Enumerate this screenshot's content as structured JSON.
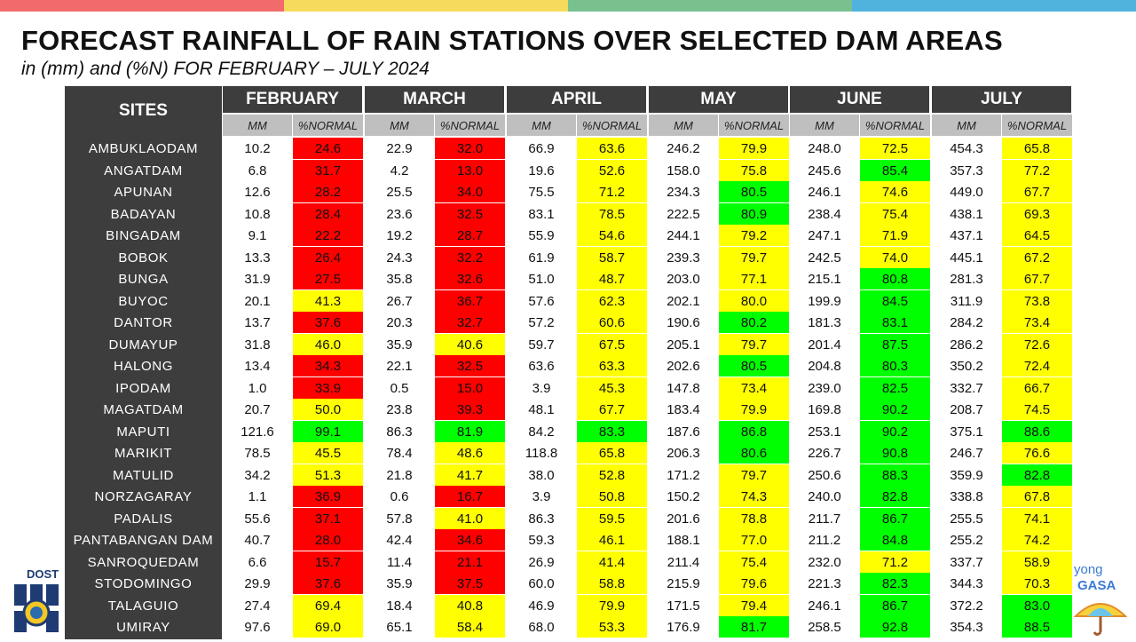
{
  "top_bar_colors": [
    "#f26b6b",
    "#f6da5b",
    "#78c08e",
    "#4fb3de"
  ],
  "title": "FORECAST RAINFALL OF RAIN STATIONS OVER SELECTED DAM AREAS",
  "subtitle": "in (mm) and (%N) FOR FEBRUARY – JULY 2024",
  "table": {
    "sites_header": "SITES",
    "mm_label": "MM",
    "pct_label": "%NORMAL",
    "months": [
      "FEBRUARY",
      "MARCH",
      "APRIL",
      "MAY",
      "JUNE",
      "JULY"
    ],
    "status_colors": {
      "red": "#ff0000",
      "yellow": "#ffff00",
      "green": "#00ff00"
    },
    "rows": [
      {
        "site": "AMBUKLAODAM",
        "values": [
          [
            "10.2",
            "24.6",
            "red"
          ],
          [
            "22.9",
            "32.0",
            "red"
          ],
          [
            "66.9",
            "63.6",
            "yellow"
          ],
          [
            "246.2",
            "79.9",
            "yellow"
          ],
          [
            "248.0",
            "72.5",
            "yellow"
          ],
          [
            "454.3",
            "65.8",
            "yellow"
          ]
        ]
      },
      {
        "site": "ANGATDAM",
        "values": [
          [
            "6.8",
            "31.7",
            "red"
          ],
          [
            "4.2",
            "13.0",
            "red"
          ],
          [
            "19.6",
            "52.6",
            "yellow"
          ],
          [
            "158.0",
            "75.8",
            "yellow"
          ],
          [
            "245.6",
            "85.4",
            "green"
          ],
          [
            "357.3",
            "77.2",
            "yellow"
          ]
        ]
      },
      {
        "site": "APUNAN",
        "values": [
          [
            "12.6",
            "28.2",
            "red"
          ],
          [
            "25.5",
            "34.0",
            "red"
          ],
          [
            "75.5",
            "71.2",
            "yellow"
          ],
          [
            "234.3",
            "80.5",
            "green"
          ],
          [
            "246.1",
            "74.6",
            "yellow"
          ],
          [
            "449.0",
            "67.7",
            "yellow"
          ]
        ]
      },
      {
        "site": "BADAYAN",
        "values": [
          [
            "10.8",
            "28.4",
            "red"
          ],
          [
            "23.6",
            "32.5",
            "red"
          ],
          [
            "83.1",
            "78.5",
            "yellow"
          ],
          [
            "222.5",
            "80.9",
            "green"
          ],
          [
            "238.4",
            "75.4",
            "yellow"
          ],
          [
            "438.1",
            "69.3",
            "yellow"
          ]
        ]
      },
      {
        "site": "BINGADAM",
        "values": [
          [
            "9.1",
            "22.2",
            "red"
          ],
          [
            "19.2",
            "28.7",
            "red"
          ],
          [
            "55.9",
            "54.6",
            "yellow"
          ],
          [
            "244.1",
            "79.2",
            "yellow"
          ],
          [
            "247.1",
            "71.9",
            "yellow"
          ],
          [
            "437.1",
            "64.5",
            "yellow"
          ]
        ]
      },
      {
        "site": "BOBOK",
        "values": [
          [
            "13.3",
            "26.4",
            "red"
          ],
          [
            "24.3",
            "32.2",
            "red"
          ],
          [
            "61.9",
            "58.7",
            "yellow"
          ],
          [
            "239.3",
            "79.7",
            "yellow"
          ],
          [
            "242.5",
            "74.0",
            "yellow"
          ],
          [
            "445.1",
            "67.2",
            "yellow"
          ]
        ]
      },
      {
        "site": "BUNGA",
        "values": [
          [
            "31.9",
            "27.5",
            "red"
          ],
          [
            "35.8",
            "32.6",
            "red"
          ],
          [
            "51.0",
            "48.7",
            "yellow"
          ],
          [
            "203.0",
            "77.1",
            "yellow"
          ],
          [
            "215.1",
            "80.8",
            "green"
          ],
          [
            "281.3",
            "67.7",
            "yellow"
          ]
        ]
      },
      {
        "site": "BUYOC",
        "values": [
          [
            "20.1",
            "41.3",
            "yellow"
          ],
          [
            "26.7",
            "36.7",
            "red"
          ],
          [
            "57.6",
            "62.3",
            "yellow"
          ],
          [
            "202.1",
            "80.0",
            "yellow"
          ],
          [
            "199.9",
            "84.5",
            "green"
          ],
          [
            "311.9",
            "73.8",
            "yellow"
          ]
        ]
      },
      {
        "site": "DANTOR",
        "values": [
          [
            "13.7",
            "37.6",
            "red"
          ],
          [
            "20.3",
            "32.7",
            "red"
          ],
          [
            "57.2",
            "60.6",
            "yellow"
          ],
          [
            "190.6",
            "80.2",
            "green"
          ],
          [
            "181.3",
            "83.1",
            "green"
          ],
          [
            "284.2",
            "73.4",
            "yellow"
          ]
        ]
      },
      {
        "site": "DUMAYUP",
        "values": [
          [
            "31.8",
            "46.0",
            "yellow"
          ],
          [
            "35.9",
            "40.6",
            "yellow"
          ],
          [
            "59.7",
            "67.5",
            "yellow"
          ],
          [
            "205.1",
            "79.7",
            "yellow"
          ],
          [
            "201.4",
            "87.5",
            "green"
          ],
          [
            "286.2",
            "72.6",
            "yellow"
          ]
        ]
      },
      {
        "site": "HALONG",
        "values": [
          [
            "13.4",
            "34.3",
            "red"
          ],
          [
            "22.1",
            "32.5",
            "red"
          ],
          [
            "63.6",
            "63.3",
            "yellow"
          ],
          [
            "202.6",
            "80.5",
            "green"
          ],
          [
            "204.8",
            "80.3",
            "green"
          ],
          [
            "350.2",
            "72.4",
            "yellow"
          ]
        ]
      },
      {
        "site": "IPODAM",
        "values": [
          [
            "1.0",
            "33.9",
            "red"
          ],
          [
            "0.5",
            "15.0",
            "red"
          ],
          [
            "3.9",
            "45.3",
            "yellow"
          ],
          [
            "147.8",
            "73.4",
            "yellow"
          ],
          [
            "239.0",
            "82.5",
            "green"
          ],
          [
            "332.7",
            "66.7",
            "yellow"
          ]
        ]
      },
      {
        "site": "MAGATDAM",
        "values": [
          [
            "20.7",
            "50.0",
            "yellow"
          ],
          [
            "23.8",
            "39.3",
            "red"
          ],
          [
            "48.1",
            "67.7",
            "yellow"
          ],
          [
            "183.4",
            "79.9",
            "yellow"
          ],
          [
            "169.8",
            "90.2",
            "green"
          ],
          [
            "208.7",
            "74.5",
            "yellow"
          ]
        ]
      },
      {
        "site": "MAPUTI",
        "values": [
          [
            "121.6",
            "99.1",
            "green"
          ],
          [
            "86.3",
            "81.9",
            "green"
          ],
          [
            "84.2",
            "83.3",
            "green"
          ],
          [
            "187.6",
            "86.8",
            "green"
          ],
          [
            "253.1",
            "90.2",
            "green"
          ],
          [
            "375.1",
            "88.6",
            "green"
          ]
        ]
      },
      {
        "site": "MARIKIT",
        "values": [
          [
            "78.5",
            "45.5",
            "yellow"
          ],
          [
            "78.4",
            "48.6",
            "yellow"
          ],
          [
            "118.8",
            "65.8",
            "yellow"
          ],
          [
            "206.3",
            "80.6",
            "green"
          ],
          [
            "226.7",
            "90.8",
            "green"
          ],
          [
            "246.7",
            "76.6",
            "yellow"
          ]
        ]
      },
      {
        "site": "MATULID",
        "values": [
          [
            "34.2",
            "51.3",
            "yellow"
          ],
          [
            "21.8",
            "41.7",
            "yellow"
          ],
          [
            "38.0",
            "52.8",
            "yellow"
          ],
          [
            "171.2",
            "79.7",
            "yellow"
          ],
          [
            "250.6",
            "88.3",
            "green"
          ],
          [
            "359.9",
            "82.8",
            "green"
          ]
        ]
      },
      {
        "site": "NORZAGARAY",
        "values": [
          [
            "1.1",
            "36.9",
            "red"
          ],
          [
            "0.6",
            "16.7",
            "red"
          ],
          [
            "3.9",
            "50.8",
            "yellow"
          ],
          [
            "150.2",
            "74.3",
            "yellow"
          ],
          [
            "240.0",
            "82.8",
            "green"
          ],
          [
            "338.8",
            "67.8",
            "yellow"
          ]
        ]
      },
      {
        "site": "PADALIS",
        "values": [
          [
            "55.6",
            "37.1",
            "red"
          ],
          [
            "57.8",
            "41.0",
            "yellow"
          ],
          [
            "86.3",
            "59.5",
            "yellow"
          ],
          [
            "201.6",
            "78.8",
            "yellow"
          ],
          [
            "211.7",
            "86.7",
            "green"
          ],
          [
            "255.5",
            "74.1",
            "yellow"
          ]
        ]
      },
      {
        "site": "PANTABANGAN DAM",
        "values": [
          [
            "40.7",
            "28.0",
            "red"
          ],
          [
            "42.4",
            "34.6",
            "red"
          ],
          [
            "59.3",
            "46.1",
            "yellow"
          ],
          [
            "188.1",
            "77.0",
            "yellow"
          ],
          [
            "211.2",
            "84.8",
            "green"
          ],
          [
            "255.2",
            "74.2",
            "yellow"
          ]
        ]
      },
      {
        "site": "SANROQUEDAM",
        "values": [
          [
            "6.6",
            "15.7",
            "red"
          ],
          [
            "11.4",
            "21.1",
            "red"
          ],
          [
            "26.9",
            "41.4",
            "yellow"
          ],
          [
            "211.4",
            "75.4",
            "yellow"
          ],
          [
            "232.0",
            "71.2",
            "yellow"
          ],
          [
            "337.7",
            "58.9",
            "yellow"
          ]
        ]
      },
      {
        "site": "STODOMINGO",
        "values": [
          [
            "29.9",
            "37.6",
            "red"
          ],
          [
            "35.9",
            "37.5",
            "red"
          ],
          [
            "60.0",
            "58.8",
            "yellow"
          ],
          [
            "215.9",
            "79.6",
            "yellow"
          ],
          [
            "221.3",
            "82.3",
            "green"
          ],
          [
            "344.3",
            "70.3",
            "yellow"
          ]
        ]
      },
      {
        "site": "TALAGUIO",
        "values": [
          [
            "27.4",
            "69.4",
            "yellow"
          ],
          [
            "18.4",
            "40.8",
            "yellow"
          ],
          [
            "46.9",
            "79.9",
            "yellow"
          ],
          [
            "171.5",
            "79.4",
            "yellow"
          ],
          [
            "246.1",
            "86.7",
            "green"
          ],
          [
            "372.2",
            "83.0",
            "green"
          ]
        ]
      },
      {
        "site": "UMIRAY",
        "values": [
          [
            "97.6",
            "69.0",
            "yellow"
          ],
          [
            "65.1",
            "58.4",
            "yellow"
          ],
          [
            "68.0",
            "53.3",
            "yellow"
          ],
          [
            "176.9",
            "81.7",
            "green"
          ],
          [
            "258.5",
            "92.8",
            "green"
          ],
          [
            "354.3",
            "88.5",
            "green"
          ]
        ]
      }
    ]
  },
  "logos": {
    "left_text": "DOST",
    "left_icon": "dost-logo-icon",
    "right_text": [
      "yong",
      "GASA"
    ],
    "right_icon": "umbrella-mascot-icon"
  }
}
